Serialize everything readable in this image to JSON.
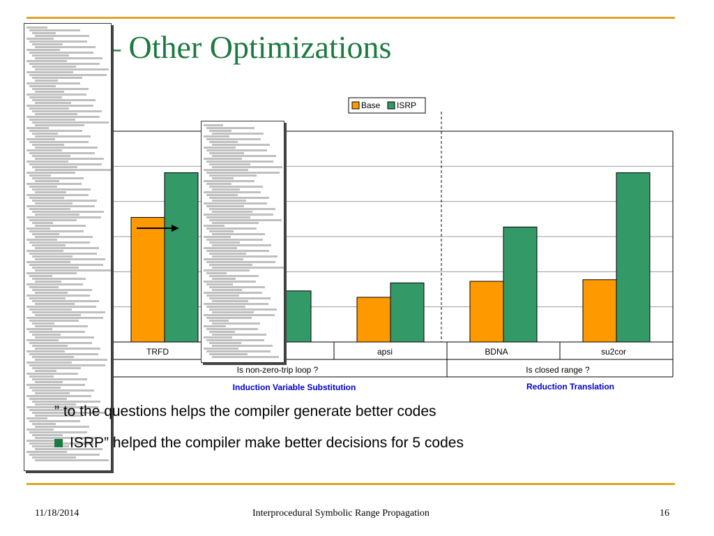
{
  "slide": {
    "title": "ult – Other Optimizations",
    "bullets": [
      "” to the questions helps the compiler generate better codes",
      "ISRP” helped the compiler make better decisions for 5 codes"
    ]
  },
  "footer": {
    "date": "11/18/2014",
    "title": "Interprocedural Symbolic Range Propagation",
    "page": "16"
  },
  "colors": {
    "accent_rule": "#e0a528",
    "title_green": "#1c7a40",
    "base_orange": "#ff9900",
    "isrp_green": "#339966",
    "group_label_blue": "#0000cc"
  },
  "icons": [
    "arrow-icon",
    "bullet-square-icon"
  ],
  "chart_data": {
    "type": "bar",
    "legend": [
      "Base",
      "ISRP"
    ],
    "legend_position": "top-right",
    "categories": [
      "TRFD",
      "",
      "apsi",
      "BDNA",
      "su2cor"
    ],
    "series": [
      {
        "name": "Base",
        "values": [
          3.9,
          null,
          1.4,
          1.9,
          1.95
        ]
      },
      {
        "name": "ISRP",
        "values": [
          5.3,
          1.6,
          1.85,
          3.6,
          5.3
        ]
      }
    ],
    "ylim": [
      0,
      6.6
    ],
    "grid": true,
    "groups": [
      {
        "question": "Is non-zero-trip loop ?",
        "name": "Induction Variable Substitution"
      },
      {
        "question": "Is closed range ?",
        "name": "Reduction Translation"
      }
    ]
  }
}
